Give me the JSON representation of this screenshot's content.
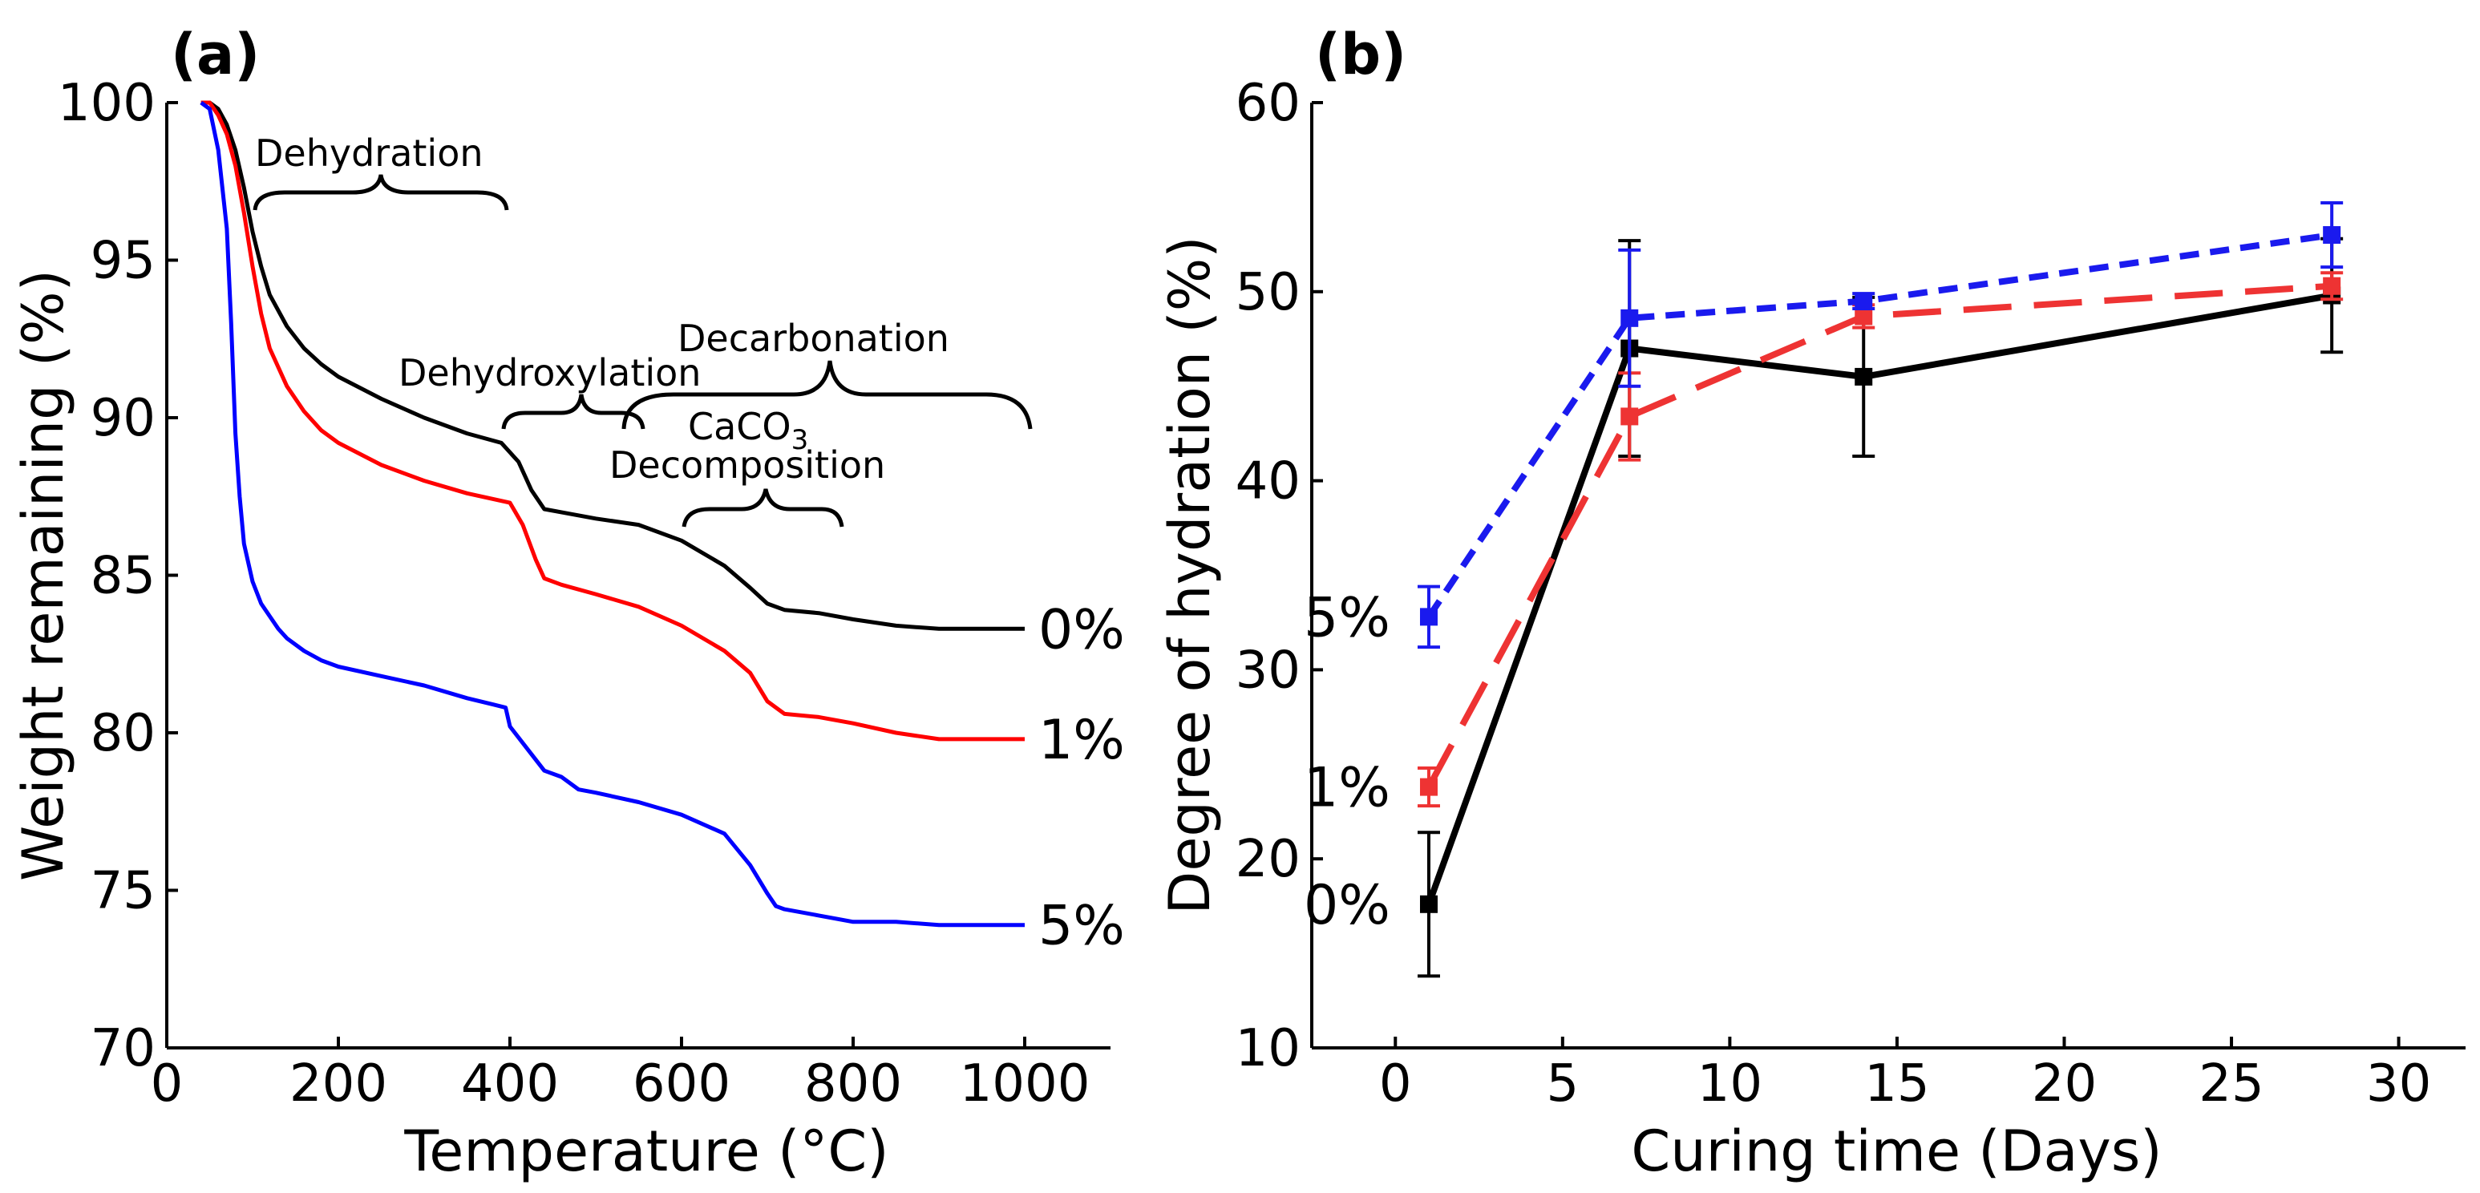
{
  "chart_data": [
    {
      "panel_label": "(a)",
      "type": "line",
      "xlabel": "Temperature (°C)",
      "ylabel": "Weight remaining (%)",
      "xlim": [
        0,
        1100
      ],
      "ylim": [
        70,
        100
      ],
      "xticks": [
        "0",
        "200",
        "400",
        "600",
        "800",
        "1000"
      ],
      "yticks": [
        "70",
        "75",
        "80",
        "85",
        "90",
        "95",
        "100"
      ],
      "series": [
        {
          "name": "0%",
          "color": "#000000",
          "x": [
            40,
            50,
            60,
            70,
            80,
            90,
            100,
            110,
            120,
            140,
            160,
            180,
            200,
            250,
            300,
            350,
            390,
            410,
            425,
            440,
            460,
            500,
            550,
            600,
            650,
            680,
            700,
            720,
            760,
            800,
            850,
            900,
            1000
          ],
          "y": [
            100,
            100,
            99.8,
            99.3,
            98.5,
            97.3,
            95.9,
            94.8,
            93.9,
            92.9,
            92.2,
            91.7,
            91.3,
            90.6,
            90.0,
            89.5,
            89.2,
            88.6,
            87.7,
            87.1,
            87.0,
            86.8,
            86.6,
            86.1,
            85.3,
            84.6,
            84.1,
            83.9,
            83.8,
            83.6,
            83.4,
            83.3,
            83.3
          ]
        },
        {
          "name": "1%",
          "color": "#ff0000",
          "x": [
            40,
            50,
            60,
            70,
            80,
            90,
            100,
            110,
            120,
            140,
            160,
            180,
            200,
            250,
            300,
            350,
            400,
            415,
            430,
            440,
            460,
            500,
            550,
            600,
            650,
            680,
            700,
            720,
            760,
            800,
            850,
            900,
            1000
          ],
          "y": [
            100,
            100,
            99.6,
            99.0,
            98.0,
            96.5,
            94.8,
            93.3,
            92.2,
            91.0,
            90.2,
            89.6,
            89.2,
            88.5,
            88.0,
            87.6,
            87.3,
            86.6,
            85.5,
            84.9,
            84.7,
            84.4,
            84.0,
            83.4,
            82.6,
            81.9,
            81.0,
            80.6,
            80.5,
            80.3,
            80.0,
            79.8,
            79.8
          ]
        },
        {
          "name": "5%",
          "color": "#0000ff",
          "x": [
            40,
            50,
            60,
            70,
            75,
            80,
            85,
            90,
            100,
            110,
            120,
            130,
            140,
            160,
            180,
            200,
            250,
            300,
            350,
            380,
            395,
            400,
            420,
            440,
            460,
            480,
            500,
            550,
            600,
            650,
            680,
            700,
            710,
            720,
            760,
            800,
            850,
            900,
            1000
          ],
          "y": [
            100,
            99.8,
            98.5,
            96.0,
            93.0,
            89.5,
            87.5,
            86.0,
            84.8,
            84.1,
            83.7,
            83.3,
            83.0,
            82.6,
            82.3,
            82.1,
            81.8,
            81.5,
            81.1,
            80.9,
            80.8,
            80.2,
            79.5,
            78.8,
            78.6,
            78.2,
            78.1,
            77.8,
            77.4,
            76.8,
            75.8,
            74.9,
            74.5,
            74.4,
            74.2,
            74.0,
            74.0,
            73.9,
            73.9
          ]
        }
      ],
      "series_labels": [
        "0%",
        "1%",
        "5%"
      ],
      "annotations": {
        "dehydration": "Dehydration",
        "dehydroxylation": "Dehydroxylation",
        "decarbonation": "Decarbonation",
        "caco3_prefix": "CaCO",
        "caco3_subscript": "3",
        "decomposition": "Decomposition"
      }
    },
    {
      "panel_label": "(b)",
      "type": "line",
      "xlabel": "Curing time (Days)",
      "ylabel": "Degree of hydration (%)",
      "xlim": [
        -2.5,
        32
      ],
      "ylim": [
        10,
        60
      ],
      "xticks": [
        "0",
        "5",
        "10",
        "15",
        "20",
        "25",
        "30"
      ],
      "yticks": [
        "10",
        "20",
        "30",
        "40",
        "50",
        "60"
      ],
      "series": [
        {
          "name": "0%",
          "color": "#000000",
          "style": "solid",
          "x": [
            1,
            7,
            14,
            28
          ],
          "y": [
            17.6,
            47.0,
            45.5,
            49.8
          ],
          "err": [
            3.8,
            5.7,
            4.2,
            3.0
          ]
        },
        {
          "name": "1%",
          "color": "#ee3333",
          "style": "dashed",
          "x": [
            1,
            7,
            14,
            28
          ],
          "y": [
            23.8,
            43.4,
            48.7,
            50.3
          ],
          "err": [
            1.0,
            2.3,
            0.6,
            0.7
          ]
        },
        {
          "name": "5%",
          "color": "#1a1aee",
          "style": "dotted",
          "x": [
            1,
            7,
            14,
            28
          ],
          "y": [
            32.8,
            48.6,
            49.5,
            53.0
          ],
          "err": [
            1.6,
            3.6,
            0.4,
            1.7
          ]
        }
      ],
      "series_labels": [
        "0%",
        "1%",
        "5%"
      ]
    }
  ]
}
